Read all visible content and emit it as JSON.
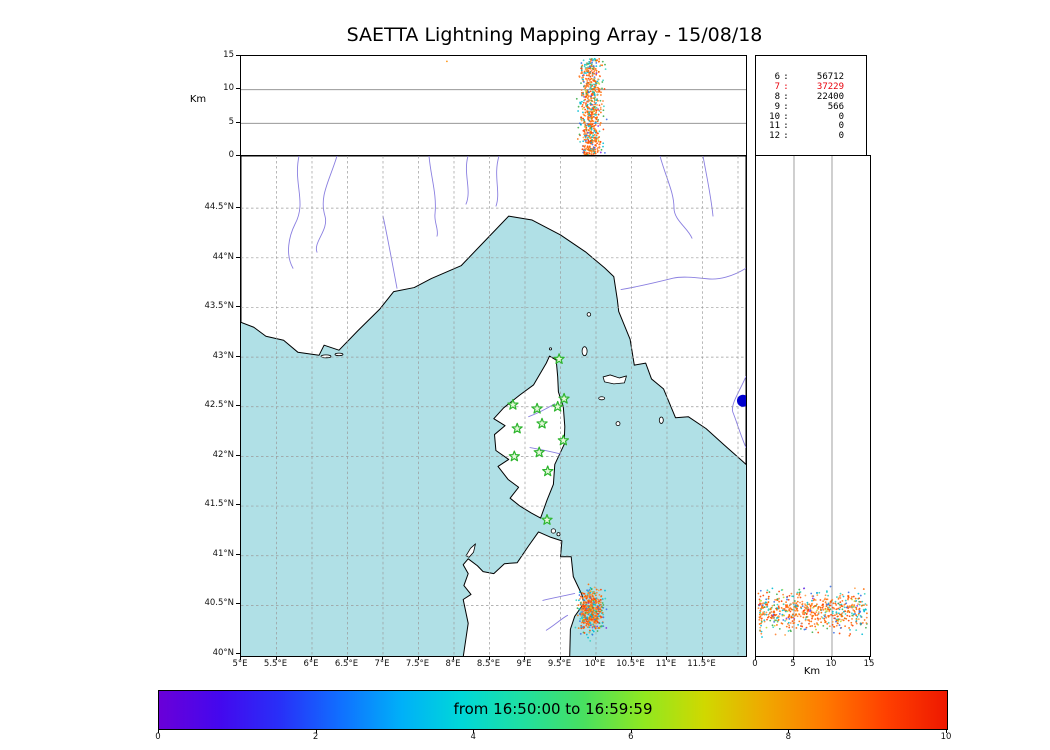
{
  "title": "SAETTA Lightning Mapping Array - 15/08/18",
  "alt_lon_panel": {
    "ylabel": "Km",
    "yticks": [
      {
        "v": 0,
        "t": "0"
      },
      {
        "v": 5,
        "t": "5"
      },
      {
        "v": 10,
        "t": "10"
      },
      {
        "v": 15,
        "t": "15"
      }
    ]
  },
  "alt_lat_panel": {
    "xlabel": "Km",
    "xticks": [
      {
        "v": 0,
        "t": "0"
      },
      {
        "v": 5,
        "t": "5"
      },
      {
        "v": 10,
        "t": "10"
      },
      {
        "v": 15,
        "t": "15"
      }
    ]
  },
  "stats_panel": {
    "rows": [
      {
        "k": "6",
        "v": "56712",
        "hl": false
      },
      {
        "k": "7",
        "v": "37229",
        "hl": true
      },
      {
        "k": "8",
        "v": "22400",
        "hl": false
      },
      {
        "k": "9",
        "v": "566",
        "hl": false
      },
      {
        "k": "10",
        "v": "0",
        "hl": false
      },
      {
        "k": "11",
        "v": "0",
        "hl": false
      },
      {
        "k": "12",
        "v": "0",
        "hl": false
      }
    ],
    "highlight_color": "#e8000b"
  },
  "map": {
    "sea_color": "#b0e0e6",
    "land_color": "#ffffff",
    "river_color": "#8a7fe0",
    "grid_color": "#9a9a9a",
    "lon_ticks": [
      {
        "v": 5,
        "t": "5°E"
      },
      {
        "v": 5.5,
        "t": "5.5°E"
      },
      {
        "v": 6,
        "t": "6°E"
      },
      {
        "v": 6.5,
        "t": "6.5°E"
      },
      {
        "v": 7,
        "t": "7°E"
      },
      {
        "v": 7.5,
        "t": "7.5°E"
      },
      {
        "v": 8,
        "t": "8°E"
      },
      {
        "v": 8.5,
        "t": "8.5°E"
      },
      {
        "v": 9,
        "t": "9°E"
      },
      {
        "v": 9.5,
        "t": "9.5°E"
      },
      {
        "v": 10,
        "t": "10°E"
      },
      {
        "v": 10.5,
        "t": "10.5°E"
      },
      {
        "v": 11,
        "t": "11°E"
      },
      {
        "v": 11.5,
        "t": "11.5°E"
      }
    ],
    "lat_ticks": [
      {
        "v": 44.5,
        "t": "44.5°N"
      },
      {
        "v": 44,
        "t": "44°N"
      },
      {
        "v": 43.5,
        "t": "43.5°N"
      },
      {
        "v": 43,
        "t": "43°N"
      },
      {
        "v": 42.5,
        "t": "42.5°N"
      },
      {
        "v": 42,
        "t": "42°N"
      },
      {
        "v": 41.5,
        "t": "41.5°N"
      },
      {
        "v": 41,
        "t": "41°N"
      },
      {
        "v": 40.5,
        "t": "40.5°N"
      },
      {
        "v": 40,
        "t": "40°N"
      }
    ],
    "stations": [
      [
        9.48,
        42.98
      ],
      [
        8.83,
        42.52
      ],
      [
        9.17,
        42.48
      ],
      [
        9.46,
        42.5
      ],
      [
        9.55,
        42.58
      ],
      [
        8.89,
        42.28
      ],
      [
        9.24,
        42.33
      ],
      [
        9.54,
        42.16
      ],
      [
        8.85,
        42.0
      ],
      [
        9.2,
        42.04
      ],
      [
        9.32,
        41.85
      ],
      [
        9.31,
        41.36
      ]
    ],
    "station_color": "#2db52d",
    "edge_dot": {
      "lon": 12.07,
      "lat": 42.56,
      "color": "#0000cd"
    }
  },
  "colorbar": {
    "label": "from 16:50:00 to 16:59:59",
    "ticks": [
      {
        "v": 0,
        "t": "0"
      },
      {
        "v": 2,
        "t": "2"
      },
      {
        "v": 4,
        "t": "4"
      },
      {
        "v": 6,
        "t": "6"
      },
      {
        "v": 8,
        "t": "8"
      },
      {
        "v": 10,
        "t": "10"
      }
    ],
    "range": [
      0,
      10
    ],
    "gradient": [
      "#6a00d8",
      "#4408ee",
      "#2830f8",
      "#1070ff",
      "#00b0f8",
      "#00d8d8",
      "#20e0a0",
      "#48e060",
      "#90e820",
      "#d0d800",
      "#f0a800",
      "#ff7800",
      "#ff4000",
      "#ee1800"
    ]
  },
  "chart_data": {
    "type": "scatter",
    "title": "SAETTA Lightning Mapping Array - 15/08/18",
    "date": "15/08/18",
    "time_window": {
      "from": "16:50:00",
      "to": "16:59:59"
    },
    "panels": [
      {
        "name": "altitude-vs-longitude",
        "xlim": [
          5,
          12.11
        ],
        "ylim_km": [
          0,
          15
        ],
        "ylabel": "Km",
        "gridlines_km": [
          5,
          10
        ]
      },
      {
        "name": "plan-view-map",
        "xlim": [
          5,
          12.11
        ],
        "ylim": [
          40,
          45.03
        ],
        "grid": "dashed every 0.5 degree"
      },
      {
        "name": "altitude-vs-latitude",
        "xlim_km": [
          0,
          15
        ],
        "ylim": [
          40,
          45.03
        ],
        "xlabel": "Km",
        "gridlines_km": [
          5,
          10
        ]
      }
    ],
    "sources_per_station_count": [
      [
        "6",
        56712
      ],
      [
        "7",
        37229
      ],
      [
        "8",
        22400
      ],
      [
        "9",
        566
      ],
      [
        "10",
        0
      ],
      [
        "11",
        0
      ],
      [
        "12",
        0
      ]
    ],
    "highlighted_count_row": "7",
    "storm_cluster": {
      "lon_center": 9.93,
      "lon_spread_deg": 0.24,
      "lat_center": 40.44,
      "lat_spread_deg": 0.3,
      "alt_min_km": 0.3,
      "alt_max_km": 14.6,
      "location": "east coast of Sardinia"
    },
    "outlier_points": [
      {
        "lon": 7.9,
        "alt_km": 14.2
      }
    ],
    "station_count": 12,
    "palette": [
      {
        "c": "#ff6a00",
        "w": 26
      },
      {
        "c": "#ff8333",
        "w": 16
      },
      {
        "c": "#ff4500",
        "w": 16
      },
      {
        "c": "#ff9d45",
        "w": 7
      },
      {
        "c": "#00bcd4",
        "w": 9
      },
      {
        "c": "#35d0c0",
        "w": 5
      },
      {
        "c": "#3fae4c",
        "w": 5
      },
      {
        "c": "#3a6fe8",
        "w": 4
      },
      {
        "c": "#bfdc30",
        "w": 3
      },
      {
        "c": "#8a2be2",
        "w": 1
      }
    ],
    "cool_colors": [
      "#00bcd4",
      "#35d0c0",
      "#3fae4c",
      "#3a6fe8"
    ]
  }
}
